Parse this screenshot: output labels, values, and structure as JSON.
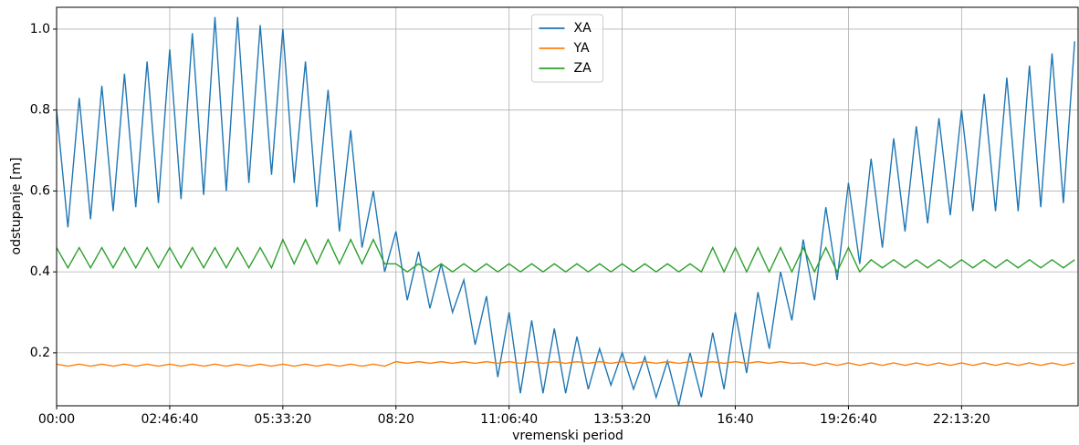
{
  "chart_data": {
    "type": "line",
    "x_label": "vremenski period",
    "y_label": "odstupanje [m]",
    "x": [
      0,
      1000,
      2000,
      3000,
      4000,
      5000,
      6000,
      7000,
      8000,
      9000,
      10000,
      11000,
      12000,
      13000,
      14000,
      15000,
      16000,
      17000,
      18000,
      19000,
      20000,
      21000,
      22000,
      23000,
      24000,
      25000,
      26000,
      27000,
      28000,
      29000,
      30000,
      31000,
      32000,
      33000,
      34000,
      35000,
      36000,
      37000,
      38000,
      39000,
      40000,
      41000,
      42000,
      43000,
      44000,
      45000,
      46000,
      47000,
      48000,
      49000,
      50000,
      51000,
      52000,
      53000,
      54000,
      55000,
      56000,
      57000,
      58000,
      59000,
      60000,
      61000,
      62000,
      63000,
      64000,
      65000,
      66000,
      67000,
      68000,
      69000,
      70000,
      71000,
      72000,
      73000,
      74000,
      75000,
      76000,
      77000,
      78000,
      79000,
      80000,
      81000,
      82000,
      83000,
      84000,
      85000,
      86000,
      87000,
      88000,
      89000,
      90000
    ],
    "series": [
      {
        "name": "XA",
        "color": "#1f77b4",
        "values": [
          0.8,
          0.51,
          0.83,
          0.53,
          0.86,
          0.55,
          0.89,
          0.56,
          0.92,
          0.57,
          0.95,
          0.58,
          0.99,
          0.59,
          1.03,
          0.6,
          1.03,
          0.62,
          1.01,
          0.64,
          1.0,
          0.62,
          0.92,
          0.56,
          0.85,
          0.5,
          0.75,
          0.46,
          0.6,
          0.4,
          0.5,
          0.33,
          0.45,
          0.31,
          0.42,
          0.3,
          0.38,
          0.22,
          0.34,
          0.14,
          0.3,
          0.1,
          0.28,
          0.1,
          0.26,
          0.1,
          0.24,
          0.11,
          0.21,
          0.12,
          0.2,
          0.11,
          0.19,
          0.09,
          0.18,
          0.07,
          0.2,
          0.09,
          0.25,
          0.11,
          0.3,
          0.15,
          0.35,
          0.21,
          0.4,
          0.28,
          0.48,
          0.33,
          0.56,
          0.38,
          0.62,
          0.42,
          0.68,
          0.46,
          0.73,
          0.5,
          0.76,
          0.52,
          0.78,
          0.54,
          0.8,
          0.55,
          0.84,
          0.55,
          0.88,
          0.55,
          0.91,
          0.56,
          0.94,
          0.57,
          0.97
        ]
      },
      {
        "name": "YA",
        "color": "#ff7f0e",
        "values": [
          0.172,
          0.167,
          0.172,
          0.167,
          0.172,
          0.167,
          0.172,
          0.167,
          0.172,
          0.167,
          0.172,
          0.167,
          0.172,
          0.167,
          0.172,
          0.167,
          0.172,
          0.167,
          0.172,
          0.167,
          0.172,
          0.167,
          0.172,
          0.167,
          0.172,
          0.167,
          0.172,
          0.167,
          0.172,
          0.167,
          0.178,
          0.174,
          0.178,
          0.174,
          0.178,
          0.174,
          0.178,
          0.174,
          0.178,
          0.174,
          0.178,
          0.174,
          0.178,
          0.174,
          0.178,
          0.174,
          0.178,
          0.174,
          0.178,
          0.174,
          0.178,
          0.174,
          0.178,
          0.174,
          0.178,
          0.174,
          0.178,
          0.174,
          0.178,
          0.174,
          0.178,
          0.174,
          0.178,
          0.174,
          0.178,
          0.174,
          0.175,
          0.169,
          0.175,
          0.169,
          0.175,
          0.169,
          0.175,
          0.169,
          0.175,
          0.169,
          0.175,
          0.169,
          0.175,
          0.169,
          0.175,
          0.169,
          0.175,
          0.169,
          0.175,
          0.169,
          0.175,
          0.169,
          0.175,
          0.169,
          0.175
        ]
      },
      {
        "name": "ZA",
        "color": "#2ca02c",
        "values": [
          0.46,
          0.41,
          0.46,
          0.41,
          0.46,
          0.41,
          0.46,
          0.41,
          0.46,
          0.41,
          0.46,
          0.41,
          0.46,
          0.41,
          0.46,
          0.41,
          0.46,
          0.41,
          0.46,
          0.41,
          0.48,
          0.42,
          0.48,
          0.42,
          0.48,
          0.42,
          0.48,
          0.42,
          0.48,
          0.42,
          0.42,
          0.4,
          0.42,
          0.4,
          0.42,
          0.4,
          0.42,
          0.4,
          0.42,
          0.4,
          0.42,
          0.4,
          0.42,
          0.4,
          0.42,
          0.4,
          0.42,
          0.4,
          0.42,
          0.4,
          0.42,
          0.4,
          0.42,
          0.4,
          0.42,
          0.4,
          0.42,
          0.4,
          0.46,
          0.4,
          0.46,
          0.4,
          0.46,
          0.4,
          0.46,
          0.4,
          0.46,
          0.4,
          0.46,
          0.4,
          0.46,
          0.4,
          0.43,
          0.41,
          0.43,
          0.41,
          0.43,
          0.41,
          0.43,
          0.41,
          0.43,
          0.41,
          0.43,
          0.41,
          0.43,
          0.41,
          0.43,
          0.41,
          0.43,
          0.41,
          0.43
        ]
      }
    ],
    "xlim": [
      0,
      90300
    ],
    "ylim": [
      0.069,
      1.054
    ],
    "xticks": [
      {
        "value": 0,
        "label": "00:00"
      },
      {
        "value": 10000,
        "label": "02:46:40"
      },
      {
        "value": 20000,
        "label": "05:33:20"
      },
      {
        "value": 30000,
        "label": "08:20"
      },
      {
        "value": 40000,
        "label": "11:06:40"
      },
      {
        "value": 50000,
        "label": "13:53:20"
      },
      {
        "value": 60000,
        "label": "16:40"
      },
      {
        "value": 70000,
        "label": "19:26:40"
      },
      {
        "value": 80000,
        "label": "22:13:20"
      }
    ],
    "yticks": [
      0.2,
      0.4,
      0.6,
      0.8,
      {
        "value": 1,
        "label": "1.0"
      }
    ],
    "grid": true,
    "legend": "upper center"
  }
}
